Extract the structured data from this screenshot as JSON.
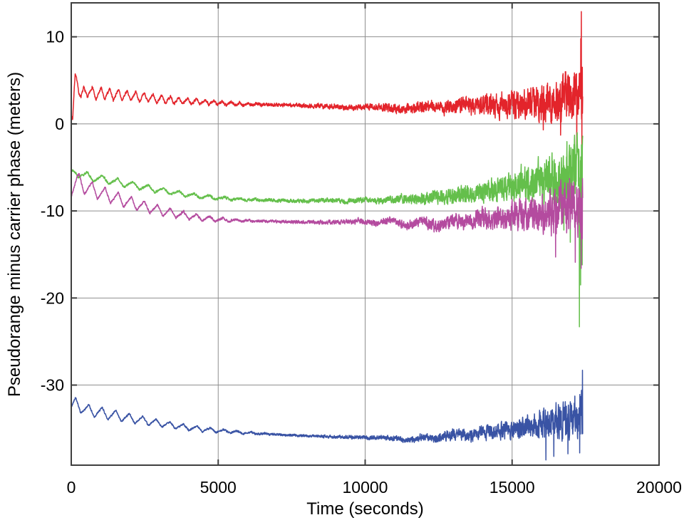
{
  "figure": {
    "background": "#ffffff"
  },
  "chart_data": {
    "type": "line",
    "title": "",
    "xlabel": "Time (seconds)",
    "ylabel": "Pseudorange minus carrier phase (meters)",
    "xlim": [
      0,
      20000
    ],
    "ylim": [
      -39.2,
      13.9
    ],
    "xticks": [
      0,
      5000,
      10000,
      15000,
      20000
    ],
    "yticks": [
      10,
      0,
      -10,
      -20,
      -30
    ],
    "grid": true,
    "legend": "none",
    "frame_color": "#3f3f3f",
    "grid_color": "#8f8f8f",
    "tick_label_color": "#000000",
    "sample_step_seconds": 5,
    "t_start": 0,
    "t_end": 17400,
    "series": [
      {
        "name": "red",
        "color": "#e3242b",
        "seed": 7,
        "sawtooth": {
          "amplitude": 0.85,
          "period": 295,
          "decay_end": 7000,
          "phase": 0.15
        },
        "mean": [
          [
            0,
            1.4
          ],
          [
            45,
            0.45
          ],
          [
            130,
            4.9
          ],
          [
            210,
            5.1
          ],
          [
            330,
            3.1
          ],
          [
            520,
            3.8
          ],
          [
            800,
            3.45
          ],
          [
            1200,
            3.45
          ],
          [
            1700,
            3.3
          ],
          [
            2200,
            3.15
          ],
          [
            2800,
            2.9
          ],
          [
            3500,
            2.7
          ],
          [
            4200,
            2.55
          ],
          [
            5000,
            2.4
          ],
          [
            6000,
            2.25
          ],
          [
            7000,
            2.2
          ],
          [
            8000,
            2.1
          ],
          [
            9000,
            2.0
          ],
          [
            9600,
            1.85
          ],
          [
            10200,
            1.95
          ],
          [
            10800,
            1.8
          ],
          [
            11300,
            1.75
          ],
          [
            11800,
            1.95
          ],
          [
            12300,
            2.1
          ],
          [
            12800,
            1.85
          ],
          [
            13300,
            2.25
          ],
          [
            13800,
            2.05
          ],
          [
            14300,
            2.35
          ],
          [
            14800,
            2.15
          ],
          [
            15300,
            2.35
          ],
          [
            15800,
            2.45
          ],
          [
            16300,
            2.6
          ],
          [
            16800,
            2.9
          ],
          [
            17100,
            3.1
          ],
          [
            17400,
            3.6
          ]
        ],
        "noise": [
          [
            0,
            0.15
          ],
          [
            3000,
            0.15
          ],
          [
            6000,
            0.18
          ],
          [
            8000,
            0.25
          ],
          [
            10000,
            0.35
          ],
          [
            11000,
            0.5
          ],
          [
            12000,
            0.65
          ],
          [
            13000,
            0.85
          ],
          [
            14000,
            1.15
          ],
          [
            15000,
            1.55
          ],
          [
            15800,
            2.0
          ],
          [
            16400,
            2.5
          ],
          [
            17000,
            3.1
          ],
          [
            17400,
            3.8
          ]
        ],
        "spikes": [
          [
            16060,
            -0.7
          ],
          [
            16650,
            -1.3
          ],
          [
            17200,
            -3.0
          ],
          [
            17335,
            9.8
          ],
          [
            17355,
            12.9
          ],
          [
            17375,
            -2.7
          ],
          [
            17390,
            6.5
          ]
        ]
      },
      {
        "name": "green",
        "color": "#64bf4b",
        "seed": 13,
        "sawtooth": {
          "amplitude": 0.55,
          "period": 520,
          "decay_end": 7600,
          "phase": 0.55
        },
        "mean": [
          [
            0,
            -5.9
          ],
          [
            160,
            -5.45
          ],
          [
            420,
            -5.95
          ],
          [
            800,
            -6.2
          ],
          [
            1300,
            -6.5
          ],
          [
            1800,
            -6.85
          ],
          [
            2300,
            -7.15
          ],
          [
            2800,
            -7.5
          ],
          [
            3300,
            -7.8
          ],
          [
            3800,
            -8.05
          ],
          [
            4300,
            -8.3
          ],
          [
            4800,
            -8.45
          ],
          [
            5400,
            -8.6
          ],
          [
            6000,
            -8.7
          ],
          [
            7000,
            -8.8
          ],
          [
            8000,
            -8.85
          ],
          [
            8700,
            -8.75
          ],
          [
            9300,
            -8.9
          ],
          [
            10000,
            -8.75
          ],
          [
            10600,
            -8.85
          ],
          [
            11200,
            -8.55
          ],
          [
            11800,
            -8.65
          ],
          [
            12300,
            -8.35
          ],
          [
            12800,
            -8.45
          ],
          [
            13300,
            -8.1
          ],
          [
            13800,
            -7.85
          ],
          [
            14300,
            -7.6
          ],
          [
            14800,
            -7.35
          ],
          [
            15300,
            -7.05
          ],
          [
            15800,
            -6.8
          ],
          [
            16300,
            -6.5
          ],
          [
            16800,
            -6.2
          ],
          [
            17400,
            -5.8
          ]
        ],
        "noise": [
          [
            0,
            0.13
          ],
          [
            4000,
            0.13
          ],
          [
            6000,
            0.16
          ],
          [
            8000,
            0.22
          ],
          [
            10000,
            0.32
          ],
          [
            11000,
            0.45
          ],
          [
            12000,
            0.62
          ],
          [
            13000,
            0.9
          ],
          [
            14000,
            1.25
          ],
          [
            15000,
            1.75
          ],
          [
            15800,
            2.4
          ],
          [
            16400,
            3.1
          ],
          [
            17000,
            4.0
          ],
          [
            17400,
            5.2
          ]
        ],
        "spikes": [
          [
            16760,
            -12.2
          ],
          [
            16980,
            -13.6
          ],
          [
            17250,
            -2.9
          ],
          [
            17290,
            -23.3
          ],
          [
            17330,
            -18.5
          ],
          [
            17360,
            -2.4
          ],
          [
            17385,
            -16.2
          ]
        ]
      },
      {
        "name": "magenta",
        "color": "#b44b9f",
        "seed": 21,
        "sawtooth": {
          "amplitude": 1.05,
          "period": 445,
          "decay_end": 6600,
          "phase": 0.0
        },
        "mean": [
          [
            0,
            -7.35
          ],
          [
            210,
            -6.55
          ],
          [
            520,
            -7.3
          ],
          [
            1000,
            -7.95
          ],
          [
            1500,
            -8.5
          ],
          [
            2000,
            -9.05
          ],
          [
            2500,
            -9.5
          ],
          [
            3000,
            -9.95
          ],
          [
            3500,
            -10.3
          ],
          [
            4000,
            -10.6
          ],
          [
            4500,
            -10.85
          ],
          [
            5000,
            -11.0
          ],
          [
            6000,
            -11.15
          ],
          [
            7000,
            -11.2
          ],
          [
            8000,
            -11.3
          ],
          [
            9000,
            -11.3
          ],
          [
            9800,
            -11.15
          ],
          [
            10400,
            -11.45
          ],
          [
            10900,
            -11.05
          ],
          [
            11400,
            -11.7
          ],
          [
            11900,
            -11.15
          ],
          [
            12400,
            -11.75
          ],
          [
            12900,
            -11.1
          ],
          [
            13400,
            -11.45
          ],
          [
            13900,
            -10.85
          ],
          [
            14400,
            -11.0
          ],
          [
            14900,
            -10.6
          ],
          [
            15400,
            -10.45
          ],
          [
            15900,
            -10.15
          ],
          [
            16400,
            -9.85
          ],
          [
            16900,
            -9.45
          ],
          [
            17400,
            -8.6
          ]
        ],
        "noise": [
          [
            0,
            0.12
          ],
          [
            4000,
            0.12
          ],
          [
            7000,
            0.17
          ],
          [
            9000,
            0.25
          ],
          [
            10500,
            0.35
          ],
          [
            11500,
            0.5
          ],
          [
            12500,
            0.7
          ],
          [
            13500,
            0.95
          ],
          [
            14500,
            1.3
          ],
          [
            15300,
            1.7
          ],
          [
            16000,
            2.2
          ],
          [
            16600,
            2.8
          ],
          [
            17100,
            3.4
          ],
          [
            17400,
            4.2
          ]
        ],
        "spikes": [
          [
            16480,
            -15.3
          ],
          [
            17150,
            -15.9
          ],
          [
            17350,
            -16.6
          ],
          [
            17390,
            -13.2
          ]
        ]
      },
      {
        "name": "blue",
        "color": "#3953a4",
        "seed": 42,
        "sawtooth": {
          "amplitude": 0.75,
          "period": 460,
          "decay_end": 7200,
          "phase": 0.3
        },
        "mean": [
          [
            0,
            -32.6
          ],
          [
            170,
            -32.05
          ],
          [
            430,
            -32.8
          ],
          [
            900,
            -33.1
          ],
          [
            1400,
            -33.45
          ],
          [
            1900,
            -33.75
          ],
          [
            2400,
            -34.05
          ],
          [
            2900,
            -34.35
          ],
          [
            3400,
            -34.6
          ],
          [
            3900,
            -34.85
          ],
          [
            4400,
            -35.05
          ],
          [
            5000,
            -35.25
          ],
          [
            5800,
            -35.45
          ],
          [
            6600,
            -35.6
          ],
          [
            7400,
            -35.75
          ],
          [
            8200,
            -35.85
          ],
          [
            9000,
            -35.95
          ],
          [
            9800,
            -36.0
          ],
          [
            10400,
            -36.05
          ],
          [
            11000,
            -36.1
          ],
          [
            11500,
            -36.35
          ],
          [
            12000,
            -35.95
          ],
          [
            12400,
            -36.2
          ],
          [
            12800,
            -35.75
          ],
          [
            13200,
            -35.65
          ],
          [
            13600,
            -35.9
          ],
          [
            14000,
            -35.35
          ],
          [
            14400,
            -35.55
          ],
          [
            14800,
            -35.05
          ],
          [
            15200,
            -34.95
          ],
          [
            15700,
            -34.7
          ],
          [
            16200,
            -34.4
          ],
          [
            16700,
            -34.1
          ],
          [
            17100,
            -33.8
          ],
          [
            17400,
            -33.2
          ]
        ],
        "noise": [
          [
            0,
            0.1
          ],
          [
            4000,
            0.1
          ],
          [
            7000,
            0.13
          ],
          [
            9000,
            0.18
          ],
          [
            10500,
            0.25
          ],
          [
            11500,
            0.35
          ],
          [
            12500,
            0.5
          ],
          [
            13500,
            0.7
          ],
          [
            14500,
            0.95
          ],
          [
            15300,
            1.25
          ],
          [
            16000,
            1.7
          ],
          [
            16600,
            2.1
          ],
          [
            17100,
            2.4
          ],
          [
            17400,
            2.8
          ]
        ],
        "spikes": [
          [
            16150,
            -38.6
          ],
          [
            16420,
            -38.2
          ],
          [
            16900,
            -37.9
          ],
          [
            17300,
            -37.8
          ],
          [
            17370,
            -30.6
          ],
          [
            17395,
            -28.3
          ]
        ]
      }
    ]
  }
}
